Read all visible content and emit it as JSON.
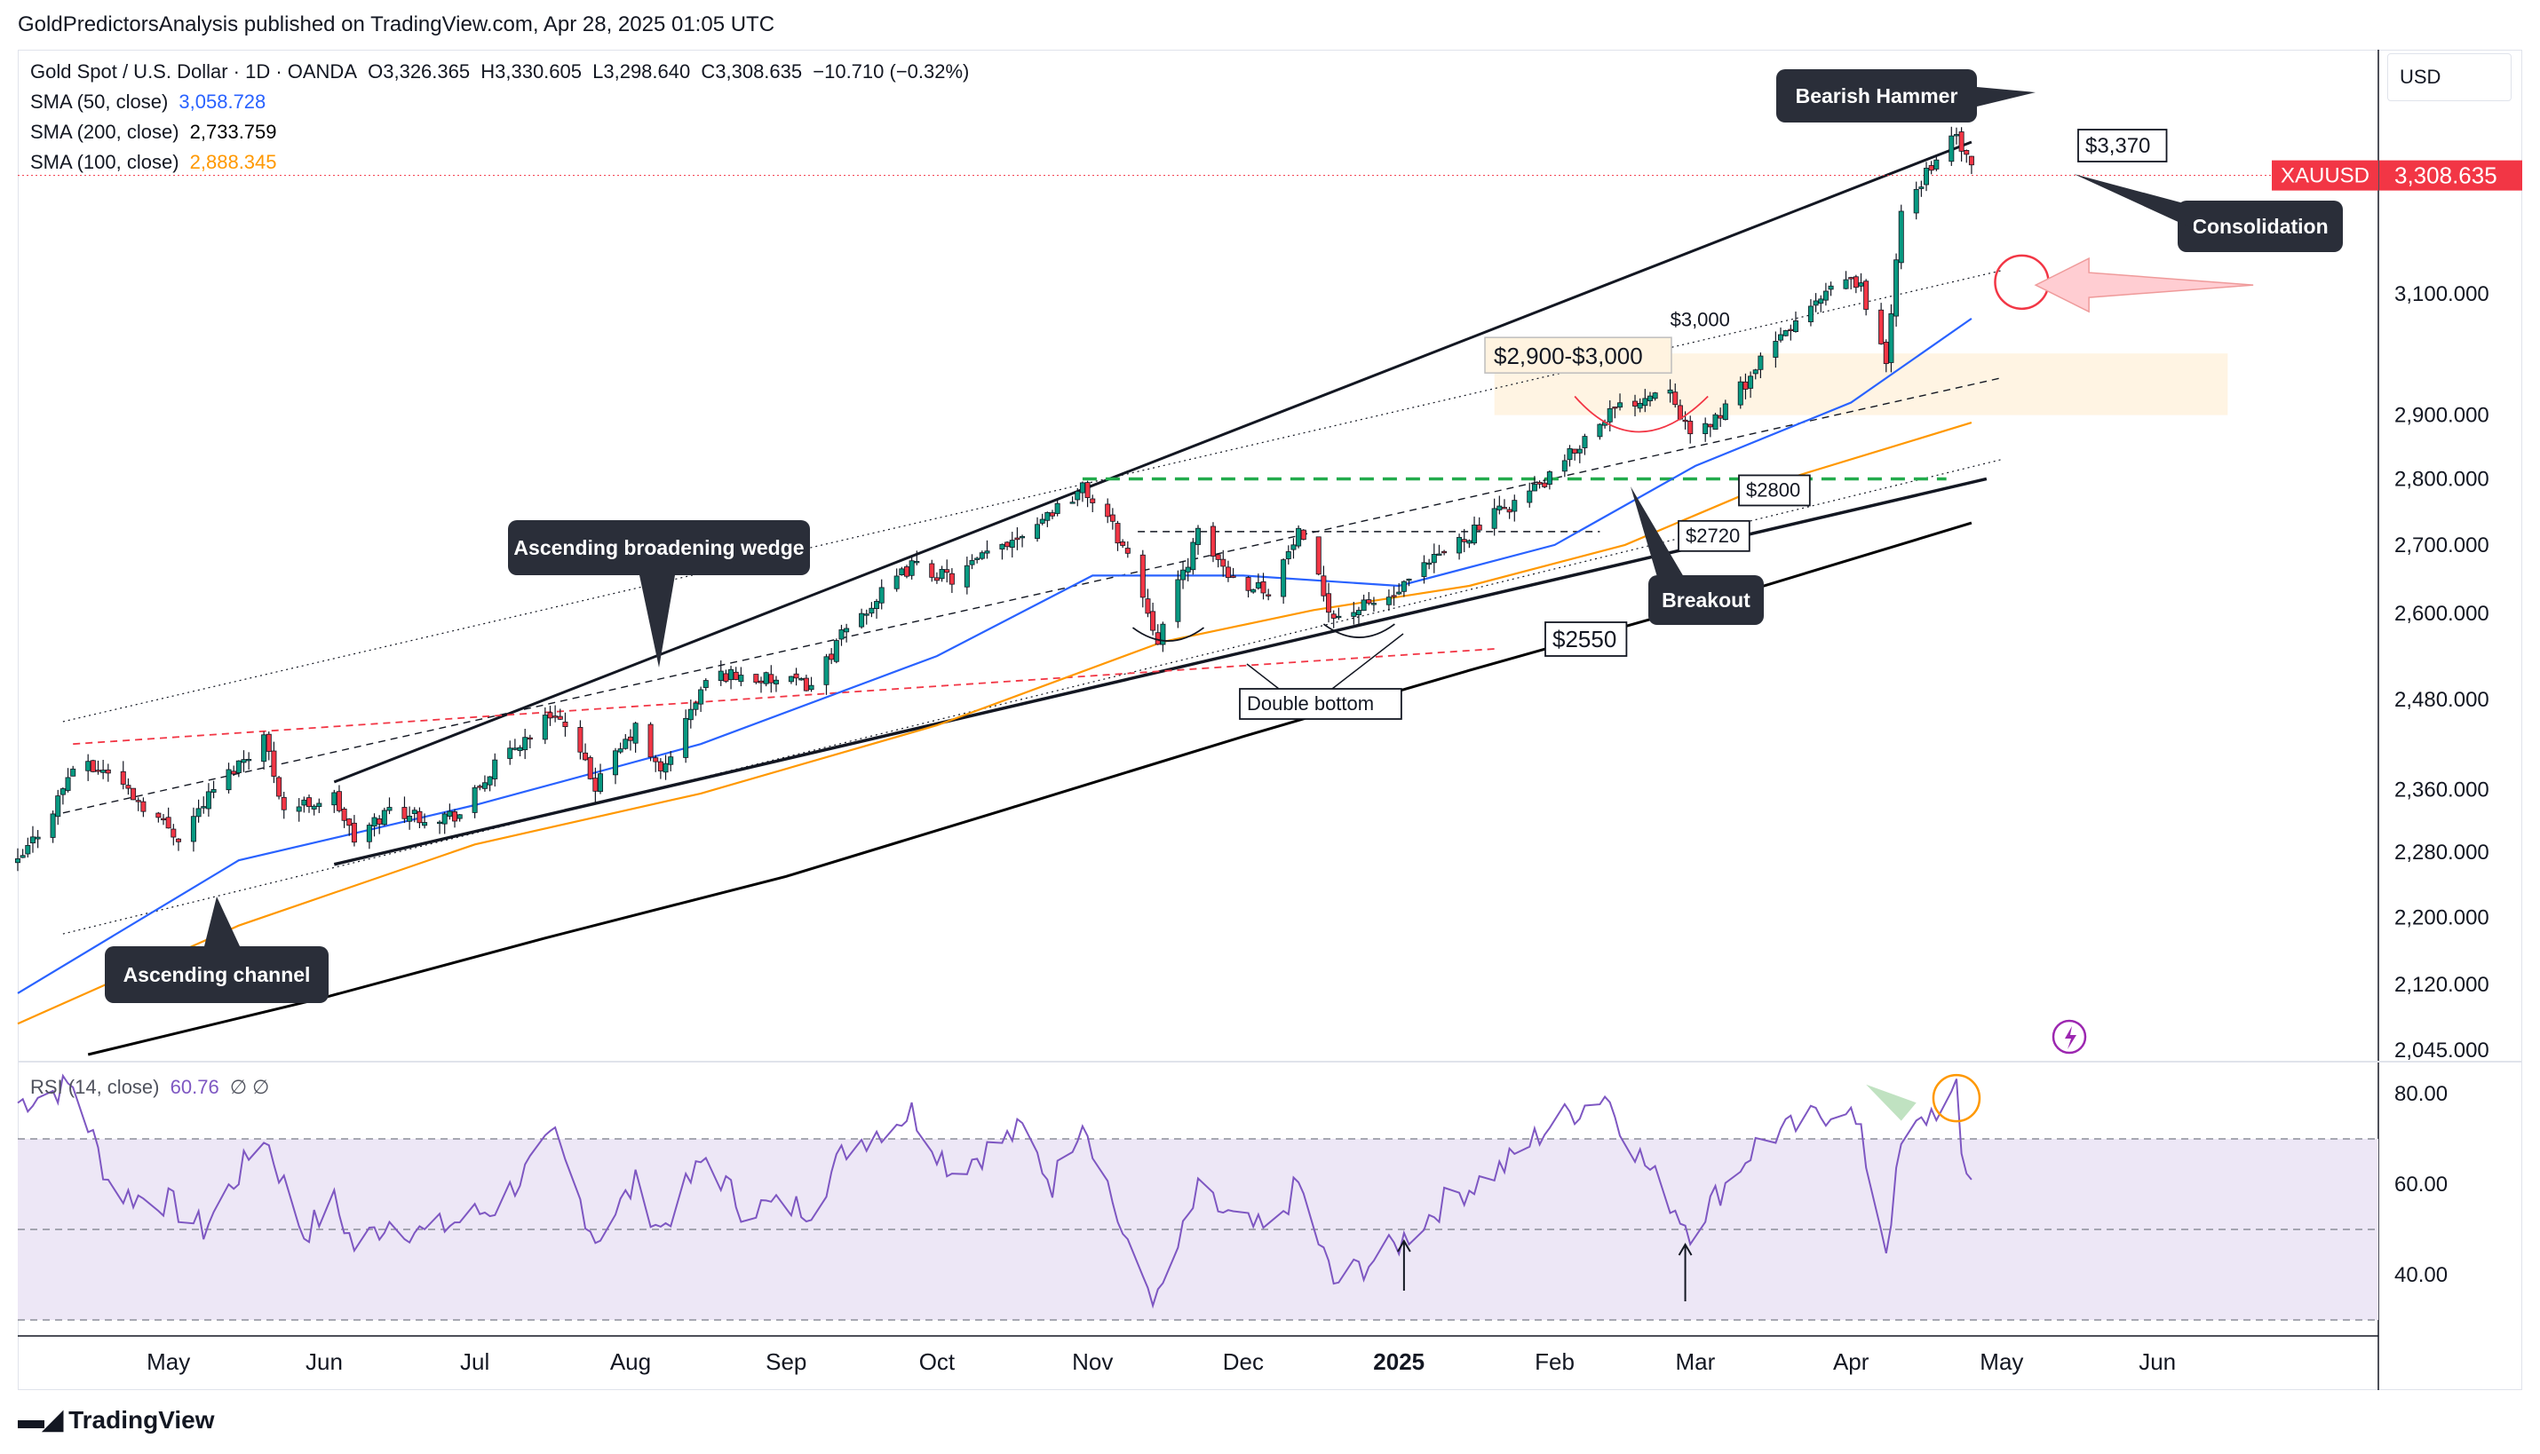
{
  "publish_line": "GoldPredictorsAnalysis published on TradingView.com, Apr 28, 2025 01:05 UTC",
  "legend": {
    "instrument": "Gold Spot / U.S. Dollar · 1D · OANDA",
    "o": "O3,326.365",
    "h": "H3,330.605",
    "l": "L3,298.640",
    "c": "C3,308.635",
    "chg": "−10.710 (−0.32%)",
    "sma50_label": "SMA (50, close)",
    "sma50_value": "3,058.728",
    "sma200_label": "SMA (200, close)",
    "sma200_value": "2,733.759",
    "sma100_label": "SMA (100, close)",
    "sma100_value": "2,888.345",
    "rsi_label": "RSI (14, close)",
    "rsi_value": "60.76",
    "rsi_extra": "∅  ∅"
  },
  "currency": "USD",
  "price_tag": {
    "symbol": "XAUUSD",
    "value": "3,308.635"
  },
  "logo_text": "TradingView",
  "colors": {
    "up": "#089981",
    "down": "#f23645",
    "sma50": "#2962ff",
    "sma100": "#ff9800",
    "sma200": "#000000",
    "rsi": "#7e57c2",
    "rsi_band": "#ede7f6",
    "zone": "#fff3e0",
    "green_level": "#22ab4c",
    "red_dash": "#f23645",
    "callout_bg": "#2a2e39",
    "price_tag_bg": "#f23645"
  },
  "annotations": {
    "bearish_hammer": "Bearish Hammer",
    "consolidation": "Consolidation",
    "level_3370": "$3,370",
    "level_3000": "$3,000",
    "zone_label": "$2,900-$3,000",
    "level_2800": "$2800",
    "level_2720": "$2720",
    "level_2550": "$2550",
    "breakout": "Breakout",
    "double_bottom": "Double bottom",
    "broadening_wedge": "Ascending broadening wedge",
    "ascending_channel": "Ascending channel"
  },
  "chart_data": [
    {
      "type": "candlestick",
      "title": "Gold Spot / U.S. Dollar · 1D · OANDA",
      "y_scale": "log",
      "y_ticks": [
        "3,100.000",
        "2,900.000",
        "2,800.000",
        "2,700.000",
        "2,600.000",
        "2,480.000",
        "2,360.000",
        "2,280.000",
        "2,200.000",
        "2,120.000",
        "2,045.000"
      ],
      "y_tick_values": [
        3100,
        2900,
        2800,
        2700,
        2600,
        2480,
        2360,
        2280,
        2200,
        2120,
        2045
      ],
      "ylim": [
        2040,
        3420
      ],
      "x_ticks": [
        "May",
        "Jun",
        "Jul",
        "Aug",
        "Sep",
        "Oct",
        "Nov",
        "Dec",
        "2025",
        "Feb",
        "Mar",
        "Apr",
        "May",
        "Jun"
      ],
      "x_tick_dates": [
        "2024-05-01",
        "2024-06-01",
        "2024-07-01",
        "2024-08-01",
        "2024-09-01",
        "2024-10-01",
        "2024-11-01",
        "2024-12-01",
        "2025-01-01",
        "2025-02-01",
        "2025-03-01",
        "2025-04-01",
        "2025-05-01",
        "2025-06-01"
      ],
      "xlim": [
        "2024-04-01",
        "2025-07-15"
      ],
      "price_path": [
        [
          "2024-04-01",
          2265
        ],
        [
          "2024-04-08",
          2335
        ],
        [
          "2024-04-12",
          2390
        ],
        [
          "2024-04-19",
          2385
        ],
        [
          "2024-04-26",
          2340
        ],
        [
          "2024-05-03",
          2300
        ],
        [
          "2024-05-10",
          2360
        ],
        [
          "2024-05-20",
          2430
        ],
        [
          "2024-05-24",
          2335
        ],
        [
          "2024-06-03",
          2350
        ],
        [
          "2024-06-07",
          2295
        ],
        [
          "2024-06-14",
          2335
        ],
        [
          "2024-06-21",
          2325
        ],
        [
          "2024-06-28",
          2328
        ],
        [
          "2024-07-05",
          2390
        ],
        [
          "2024-07-17",
          2465
        ],
        [
          "2024-07-25",
          2365
        ],
        [
          "2024-08-02",
          2440
        ],
        [
          "2024-08-07",
          2380
        ],
        [
          "2024-08-16",
          2505
        ],
        [
          "2024-08-20",
          2515
        ],
        [
          "2024-08-30",
          2505
        ],
        [
          "2024-09-06",
          2500
        ],
        [
          "2024-09-13",
          2578
        ],
        [
          "2024-09-26",
          2670
        ],
        [
          "2024-10-04",
          2650
        ],
        [
          "2024-10-18",
          2720
        ],
        [
          "2024-10-30",
          2785
        ],
        [
          "2024-11-04",
          2740
        ],
        [
          "2024-11-08",
          2685
        ],
        [
          "2024-11-14",
          2565
        ],
        [
          "2024-11-22",
          2715
        ],
        [
          "2024-11-29",
          2650
        ],
        [
          "2024-12-06",
          2635
        ],
        [
          "2024-12-12",
          2715
        ],
        [
          "2024-12-19",
          2595
        ],
        [
          "2024-12-31",
          2625
        ],
        [
          "2025-01-10",
          2690
        ],
        [
          "2025-01-22",
          2755
        ],
        [
          "2025-01-31",
          2800
        ],
        [
          "2025-02-11",
          2900
        ],
        [
          "2025-02-24",
          2950
        ],
        [
          "2025-02-28",
          2860
        ],
        [
          "2025-03-07",
          2910
        ],
        [
          "2025-03-14",
          2985
        ],
        [
          "2025-03-20",
          3045
        ],
        [
          "2025-03-31",
          3125
        ],
        [
          "2025-04-03",
          3110
        ],
        [
          "2025-04-08",
          2985
        ],
        [
          "2025-04-11",
          3235
        ],
        [
          "2025-04-17",
          3330
        ],
        [
          "2025-04-22",
          3380
        ],
        [
          "2025-04-25",
          3315
        ]
      ],
      "ohlc_last": {
        "date": "2025-04-25",
        "open": 3326.365,
        "high": 3330.605,
        "low": 3298.64,
        "close": 3308.635
      },
      "series": [
        {
          "name": "SMA (50, close)",
          "last": 3058.728,
          "points": [
            [
              "2024-04-01",
              2110
            ],
            [
              "2024-05-15",
              2270
            ],
            [
              "2024-07-01",
              2340
            ],
            [
              "2024-08-15",
              2420
            ],
            [
              "2024-10-01",
              2540
            ],
            [
              "2024-11-01",
              2655
            ],
            [
              "2024-12-01",
              2655
            ],
            [
              "2025-01-01",
              2640
            ],
            [
              "2025-02-01",
              2700
            ],
            [
              "2025-03-01",
              2820
            ],
            [
              "2025-04-01",
              2920
            ],
            [
              "2025-04-25",
              3058
            ]
          ]
        },
        {
          "name": "SMA (100, close)",
          "last": 2888.345,
          "points": [
            [
              "2024-04-01",
              2075
            ],
            [
              "2024-05-15",
              2190
            ],
            [
              "2024-07-01",
              2290
            ],
            [
              "2024-08-15",
              2355
            ],
            [
              "2024-10-01",
              2445
            ],
            [
              "2024-11-15",
              2560
            ],
            [
              "2024-12-15",
              2605
            ],
            [
              "2025-01-15",
              2640
            ],
            [
              "2025-02-15",
              2700
            ],
            [
              "2025-03-15",
              2790
            ],
            [
              "2025-04-25",
              2888
            ]
          ]
        },
        {
          "name": "SMA (200, close)",
          "last": 2733.759,
          "points": [
            [
              "2024-04-15",
              2040
            ],
            [
              "2024-06-01",
              2105
            ],
            [
              "2024-07-15",
              2175
            ],
            [
              "2024-09-01",
              2250
            ],
            [
              "2024-10-15",
              2335
            ],
            [
              "2024-12-01",
              2430
            ],
            [
              "2025-01-15",
              2520
            ],
            [
              "2025-03-01",
              2610
            ],
            [
              "2025-04-25",
              2733
            ]
          ]
        }
      ],
      "levels": [
        {
          "label": "$2800",
          "value": 2800,
          "style": "green-dash"
        },
        {
          "label": "$2720",
          "value": 2720,
          "style": "black-dash"
        },
        {
          "label": "$2550",
          "value": 2550,
          "style": "red-dash"
        }
      ],
      "zone": {
        "label": "$2,900-$3,000",
        "low": 2900,
        "high": 3000
      },
      "grid": false,
      "legend_position": "top-left"
    },
    {
      "type": "line",
      "title": "RSI (14, close)",
      "ylim": [
        28,
        86
      ],
      "y_ticks": [
        "80.00",
        "60.00",
        "40.00"
      ],
      "y_tick_values": [
        80,
        60,
        40
      ],
      "band": [
        30,
        70
      ],
      "midline": 50,
      "series": [
        {
          "name": "RSI (14, close)",
          "last": 60.76,
          "points": [
            [
              "2024-04-01",
              78
            ],
            [
              "2024-04-12",
              82
            ],
            [
              "2024-04-20",
              58
            ],
            [
              "2024-05-01",
              56
            ],
            [
              "2024-05-08",
              50
            ],
            [
              "2024-05-20",
              71
            ],
            [
              "2024-05-28",
              49
            ],
            [
              "2024-06-03",
              56
            ],
            [
              "2024-06-07",
              46
            ],
            [
              "2024-06-14",
              52
            ],
            [
              "2024-06-21",
              49
            ],
            [
              "2024-07-05",
              55
            ],
            [
              "2024-07-17",
              70
            ],
            [
              "2024-07-25",
              48
            ],
            [
              "2024-08-02",
              60
            ],
            [
              "2024-08-07",
              50
            ],
            [
              "2024-08-16",
              66
            ],
            [
              "2024-08-23",
              55
            ],
            [
              "2024-09-06",
              55
            ],
            [
              "2024-09-13",
              68
            ],
            [
              "2024-09-26",
              76
            ],
            [
              "2024-10-04",
              63
            ],
            [
              "2024-10-18",
              72
            ],
            [
              "2024-10-24",
              60
            ],
            [
              "2024-10-30",
              75
            ],
            [
              "2024-11-04",
              60
            ],
            [
              "2024-11-08",
              45
            ],
            [
              "2024-11-14",
              34
            ],
            [
              "2024-11-22",
              58
            ],
            [
              "2024-11-29",
              52
            ],
            [
              "2024-12-06",
              49
            ],
            [
              "2024-12-12",
              60
            ],
            [
              "2024-12-19",
              38
            ],
            [
              "2024-12-31",
              46
            ],
            [
              "2025-01-10",
              56
            ],
            [
              "2025-01-22",
              64
            ],
            [
              "2025-01-31",
              73
            ],
            [
              "2025-02-11",
              80
            ],
            [
              "2025-02-18",
              66
            ],
            [
              "2025-02-28",
              50
            ],
            [
              "2025-03-07",
              60
            ],
            [
              "2025-03-14",
              70
            ],
            [
              "2025-03-20",
              72
            ],
            [
              "2025-03-31",
              78
            ],
            [
              "2025-04-03",
              70
            ],
            [
              "2025-04-08",
              46
            ],
            [
              "2025-04-11",
              68
            ],
            [
              "2025-04-17",
              76
            ],
            [
              "2025-04-20",
              78
            ],
            [
              "2025-04-22",
              80
            ],
            [
              "2025-04-23",
              66
            ],
            [
              "2025-04-25",
              61
            ]
          ]
        }
      ],
      "grid": false
    }
  ]
}
